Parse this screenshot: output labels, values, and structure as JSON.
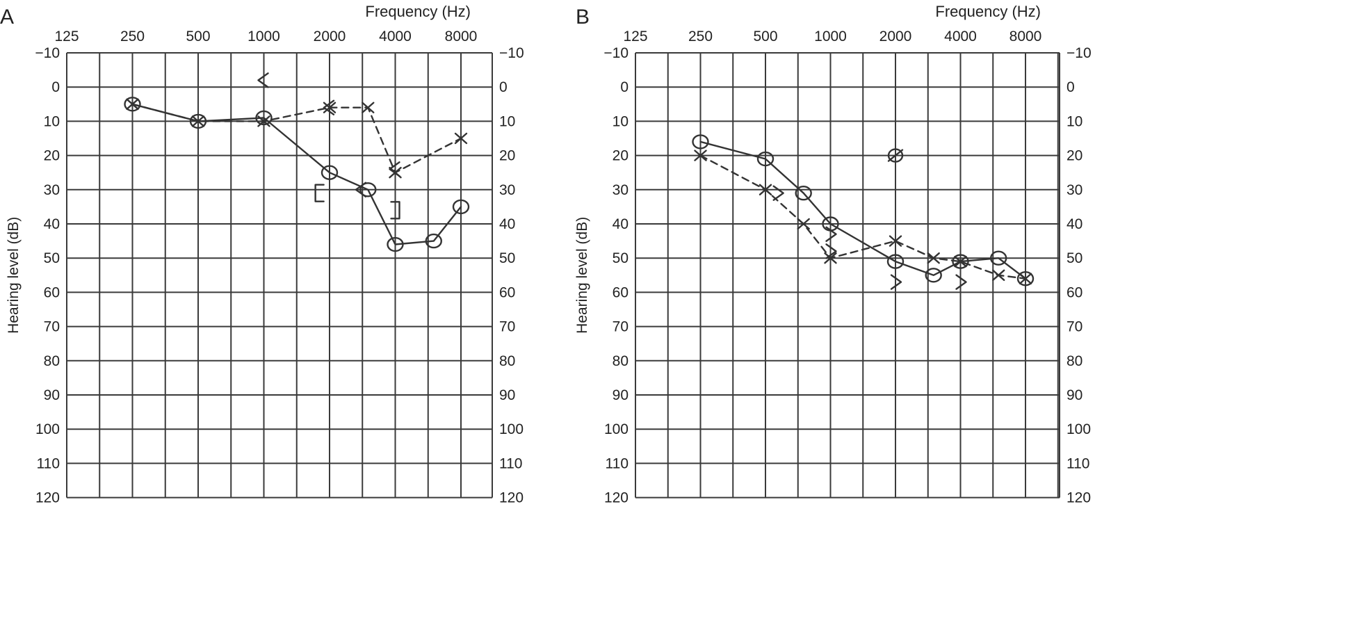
{
  "panels": [
    {
      "panel_label": "A",
      "x_title": "Frequency (Hz)",
      "y_title": "Hearing level (dB)",
      "freq_ticks": [
        "125",
        "250",
        "500",
        "1000",
        "2000",
        "4000",
        "8000"
      ],
      "db_ticks_left": [
        "−10",
        "0",
        "10",
        "20",
        "30",
        "40",
        "50",
        "60",
        "70",
        "80",
        "90",
        "100",
        "110",
        "120"
      ],
      "db_ticks_right": [
        "−10",
        "0",
        "10",
        "20",
        "30",
        "40",
        "50",
        "60",
        "70",
        "80",
        "90",
        "100",
        "110",
        "120"
      ]
    },
    {
      "panel_label": "B",
      "x_title": "Frequency (Hz)",
      "y_title": "Hearing level (dB)",
      "freq_ticks": [
        "125",
        "250",
        "500",
        "1000",
        "2000",
        "4000",
        "8000"
      ],
      "db_ticks_left": [
        "−10",
        "0",
        "10",
        "20",
        "30",
        "40",
        "50",
        "60",
        "70",
        "80",
        "90",
        "100",
        "110",
        "120"
      ],
      "db_ticks_right": [
        "−10",
        "0",
        "10",
        "20",
        "30",
        "40",
        "50",
        "60",
        "70",
        "80",
        "90",
        "100",
        "110",
        "120"
      ]
    }
  ],
  "chart_data": [
    {
      "type": "line",
      "title": "A",
      "xlabel": "Frequency (Hz)",
      "ylabel": "Hearing level (dB)",
      "x_scale": "log2",
      "xlim": [
        125,
        8000
      ],
      "ylim": [
        -10,
        120
      ],
      "y_inverted": true,
      "grid": true,
      "series": [
        {
          "marker": "circle",
          "line": "solid",
          "points": [
            [
              250,
              5
            ],
            [
              500,
              10
            ],
            [
              1000,
              9
            ],
            [
              2000,
              25
            ],
            [
              3000,
              30
            ],
            [
              4000,
              46
            ],
            [
              6000,
              45
            ],
            [
              8000,
              35
            ]
          ]
        },
        {
          "marker": "cross",
          "line": "dashed",
          "points": [
            [
              250,
              5
            ],
            [
              500,
              10
            ],
            [
              1000,
              10
            ],
            [
              2000,
              6
            ],
            [
              3000,
              6
            ],
            [
              4000,
              25
            ],
            [
              8000,
              15
            ]
          ]
        },
        {
          "marker": "angle-left",
          "line": "none",
          "points": [
            [
              1000,
              -2
            ],
            [
              2000,
              6
            ],
            [
              2800,
              30
            ],
            [
              4000,
              24
            ]
          ]
        },
        {
          "marker": "bracket-left",
          "line": "none",
          "points": [
            [
              1800,
              31
            ]
          ]
        },
        {
          "marker": "bracket-right",
          "line": "none",
          "points": [
            [
              4000,
              36
            ]
          ]
        }
      ]
    },
    {
      "type": "line",
      "title": "B",
      "xlabel": "Frequency (Hz)",
      "ylabel": "Hearing level (dB)",
      "x_scale": "log2",
      "xlim": [
        125,
        8000
      ],
      "ylim": [
        -10,
        120
      ],
      "y_inverted": true,
      "grid": true,
      "series": [
        {
          "marker": "circle",
          "line": "solid",
          "points": [
            [
              250,
              16
            ],
            [
              500,
              21
            ],
            [
              750,
              31
            ],
            [
              1000,
              40
            ],
            [
              2000,
              51
            ],
            [
              3000,
              55
            ],
            [
              4000,
              51
            ],
            [
              6000,
              50
            ],
            [
              8000,
              56
            ]
          ]
        },
        {
          "marker": "cross",
          "line": "dashed",
          "points": [
            [
              250,
              20
            ],
            [
              500,
              30
            ],
            [
              750,
              40
            ],
            [
              1000,
              50
            ],
            [
              2000,
              45
            ],
            [
              3000,
              50
            ],
            [
              4000,
              51
            ],
            [
              6000,
              55
            ],
            [
              8000,
              56
            ]
          ]
        },
        {
          "marker": "angle-right",
          "line": "none",
          "points": [
            [
              570,
              31
            ],
            [
              1000,
              43
            ],
            [
              1000,
              48
            ],
            [
              2000,
              57
            ],
            [
              4000,
              57
            ]
          ]
        },
        {
          "marker": "circle-slash",
          "line": "none",
          "points": [
            [
              2000,
              20
            ]
          ]
        }
      ]
    }
  ]
}
